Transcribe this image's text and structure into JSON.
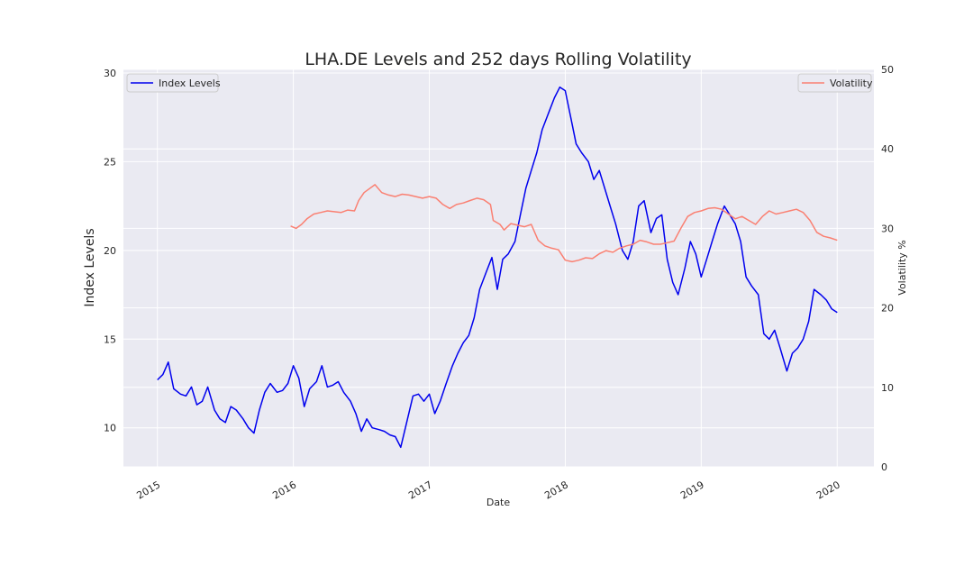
{
  "chart_data": {
    "type": "line",
    "title": "LHA.DE Levels and 252 days Rolling Volatility",
    "xlabel": "Date",
    "ylabel_left": "Index Levels",
    "ylabel_right": "Volatility %",
    "x_range": [
      2014.75,
      2020.27
    ],
    "y_left_range": [
      7.8,
      30.2
    ],
    "y_right_range": [
      0,
      50
    ],
    "x_ticks": [
      "2015",
      "2016",
      "2017",
      "2018",
      "2019",
      "2020"
    ],
    "y_left_ticks": [
      "10",
      "15",
      "20",
      "25",
      "30"
    ],
    "y_right_ticks": [
      "0",
      "10",
      "20",
      "30",
      "40",
      "50"
    ],
    "grid": true,
    "colors": {
      "index": "#0000ee",
      "volatility": "#fa8072",
      "plot_bg": "#eaeaf2",
      "grid": "#ffffff"
    },
    "legends": {
      "left": {
        "label": "Index Levels",
        "placement": "upper-left"
      },
      "right": {
        "label": "Volatility",
        "placement": "upper-right"
      }
    },
    "series": [
      {
        "name": "Index Levels",
        "axis": "left",
        "x": [
          2015.0,
          2015.04,
          2015.08,
          2015.12,
          2015.17,
          2015.21,
          2015.25,
          2015.29,
          2015.33,
          2015.37,
          2015.42,
          2015.46,
          2015.5,
          2015.54,
          2015.58,
          2015.63,
          2015.67,
          2015.71,
          2015.75,
          2015.79,
          2015.83,
          2015.88,
          2015.92,
          2015.96,
          2016.0,
          2016.04,
          2016.08,
          2016.12,
          2016.17,
          2016.21,
          2016.25,
          2016.29,
          2016.33,
          2016.37,
          2016.42,
          2016.46,
          2016.5,
          2016.54,
          2016.58,
          2016.63,
          2016.67,
          2016.71,
          2016.75,
          2016.79,
          2016.83,
          2016.88,
          2016.92,
          2016.96,
          2017.0,
          2017.04,
          2017.08,
          2017.12,
          2017.17,
          2017.21,
          2017.25,
          2017.29,
          2017.33,
          2017.37,
          2017.42,
          2017.46,
          2017.5,
          2017.54,
          2017.58,
          2017.63,
          2017.67,
          2017.71,
          2017.75,
          2017.79,
          2017.83,
          2017.88,
          2017.92,
          2017.96,
          2018.0,
          2018.04,
          2018.08,
          2018.12,
          2018.17,
          2018.21,
          2018.25,
          2018.29,
          2018.33,
          2018.37,
          2018.42,
          2018.46,
          2018.5,
          2018.54,
          2018.58,
          2018.63,
          2018.67,
          2018.71,
          2018.75,
          2018.79,
          2018.83,
          2018.88,
          2018.92,
          2018.96,
          2019.0,
          2019.04,
          2019.08,
          2019.12,
          2019.17,
          2019.21,
          2019.25,
          2019.29,
          2019.33,
          2019.37,
          2019.42,
          2019.46,
          2019.5,
          2019.54,
          2019.58,
          2019.63,
          2019.67,
          2019.71,
          2019.75,
          2019.79,
          2019.83,
          2019.88,
          2019.92,
          2019.96,
          2020.0
        ],
        "y": [
          12.7,
          13.0,
          13.7,
          12.2,
          11.9,
          11.8,
          12.3,
          11.3,
          11.5,
          12.3,
          11.0,
          10.5,
          10.3,
          11.2,
          11.0,
          10.5,
          10.0,
          9.7,
          11.0,
          12.0,
          12.5,
          12.0,
          12.1,
          12.5,
          13.5,
          12.8,
          11.2,
          12.2,
          12.6,
          13.5,
          12.3,
          12.4,
          12.6,
          12.0,
          11.5,
          10.8,
          9.8,
          10.5,
          10.0,
          9.9,
          9.8,
          9.6,
          9.5,
          8.9,
          10.2,
          11.8,
          11.9,
          11.5,
          11.9,
          10.8,
          11.5,
          12.4,
          13.5,
          14.2,
          14.8,
          15.2,
          16.2,
          17.8,
          18.8,
          19.6,
          17.8,
          19.5,
          19.8,
          20.5,
          22.0,
          23.5,
          24.5,
          25.5,
          26.8,
          27.8,
          28.6,
          29.2,
          29.0,
          27.5,
          26.0,
          25.5,
          25.0,
          24.0,
          24.5,
          23.5,
          22.5,
          21.5,
          20.0,
          19.5,
          20.5,
          22.5,
          22.8,
          21.0,
          21.8,
          22.0,
          19.5,
          18.2,
          17.5,
          19.0,
          20.5,
          19.8,
          18.5,
          19.5,
          20.5,
          21.5,
          22.5,
          22.0,
          21.5,
          20.5,
          18.5,
          18.0,
          17.5,
          15.3,
          15.0,
          15.5,
          14.5,
          13.2,
          14.2,
          14.5,
          15.0,
          16.0,
          17.8,
          17.5,
          17.2,
          16.7,
          16.5
        ]
      },
      {
        "name": "Volatility",
        "axis": "right",
        "x": [
          2015.98,
          2016.02,
          2016.06,
          2016.1,
          2016.15,
          2016.2,
          2016.25,
          2016.3,
          2016.35,
          2016.4,
          2016.45,
          2016.48,
          2016.52,
          2016.56,
          2016.6,
          2016.65,
          2016.7,
          2016.75,
          2016.8,
          2016.85,
          2016.9,
          2016.95,
          2017.0,
          2017.05,
          2017.1,
          2017.15,
          2017.2,
          2017.25,
          2017.3,
          2017.35,
          2017.4,
          2017.45,
          2017.47,
          2017.52,
          2017.55,
          2017.6,
          2017.65,
          2017.7,
          2017.75,
          2017.8,
          2017.85,
          2017.9,
          2017.95,
          2018.0,
          2018.05,
          2018.1,
          2018.15,
          2018.2,
          2018.25,
          2018.3,
          2018.35,
          2018.4,
          2018.45,
          2018.5,
          2018.55,
          2018.6,
          2018.65,
          2018.7,
          2018.75,
          2018.8,
          2018.85,
          2018.9,
          2018.95,
          2019.0,
          2019.05,
          2019.1,
          2019.15,
          2019.2,
          2019.25,
          2019.3,
          2019.35,
          2019.4,
          2019.45,
          2019.5,
          2019.55,
          2019.6,
          2019.65,
          2019.7,
          2019.75,
          2019.8,
          2019.85,
          2019.9,
          2019.95,
          2020.0
        ],
        "y": [
          30.3,
          30.0,
          30.5,
          31.2,
          31.8,
          32.0,
          32.2,
          32.1,
          32.0,
          32.3,
          32.2,
          33.5,
          34.5,
          35.0,
          35.5,
          34.5,
          34.2,
          34.0,
          34.3,
          34.2,
          34.0,
          33.8,
          34.0,
          33.8,
          33.0,
          32.5,
          33.0,
          33.2,
          33.5,
          33.8,
          33.6,
          33.0,
          31.0,
          30.5,
          29.8,
          30.6,
          30.4,
          30.2,
          30.5,
          28.5,
          27.8,
          27.5,
          27.3,
          26.0,
          25.8,
          26.0,
          26.3,
          26.2,
          26.8,
          27.2,
          27.0,
          27.5,
          27.8,
          28.0,
          28.5,
          28.3,
          28.0,
          28.0,
          28.2,
          28.4,
          30.0,
          31.5,
          32.0,
          32.2,
          32.5,
          32.6,
          32.4,
          31.8,
          31.2,
          31.5,
          31.0,
          30.5,
          31.5,
          32.2,
          31.8,
          32.0,
          32.2,
          32.4,
          32.0,
          31.0,
          29.5,
          29.0,
          28.8,
          28.5
        ]
      }
    ]
  }
}
